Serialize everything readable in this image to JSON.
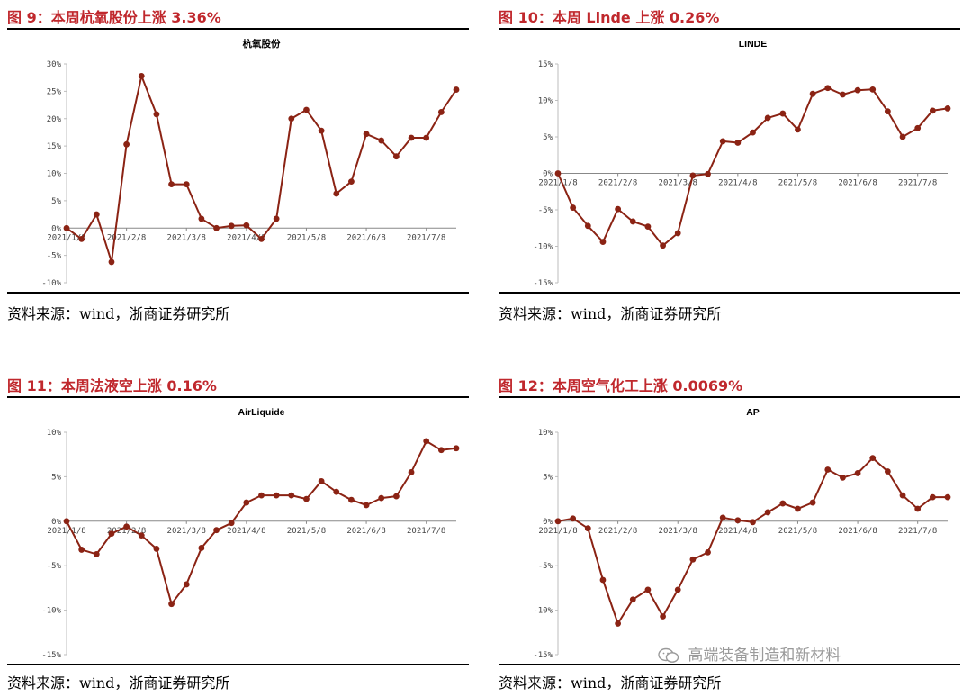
{
  "source_label": "资料来源：wind，浙商证券研究所",
  "watermark": "高端装备制造和新材料",
  "colors": {
    "line": "#8b2314",
    "title": "#c0282d"
  },
  "chart_data": [
    {
      "type": "line",
      "figure_label": "图 9：本周杭氧股份上涨 3.36%",
      "title": "杭氧股份",
      "xlabel": "",
      "ylabel": "",
      "ylim": [
        -0.1,
        0.3
      ],
      "yticks": [
        -0.1,
        -0.05,
        0,
        0.05,
        0.1,
        0.15,
        0.2,
        0.25,
        0.3
      ],
      "ytick_labels": [
        "-10%",
        "-5%",
        "0%",
        "5%",
        "10%",
        "15%",
        "20%",
        "25%",
        "30%"
      ],
      "xtick_labels": [
        "2021/1/8",
        "2021/2/8",
        "2021/3/8",
        "2021/4/8",
        "2021/5/8",
        "2021/6/8",
        "2021/7/8"
      ],
      "xtick_index": [
        0,
        4,
        8,
        12,
        16,
        20,
        24
      ],
      "values": [
        0.0,
        -0.02,
        0.025,
        -0.062,
        0.153,
        0.278,
        0.208,
        0.08,
        0.08,
        0.017,
        0.0,
        0.004,
        0.005,
        -0.02,
        0.017,
        0.2,
        0.216,
        0.178,
        0.063,
        0.085,
        0.172,
        0.16,
        0.131,
        0.165,
        0.165,
        0.212,
        0.253
      ],
      "grid": false
    },
    {
      "type": "line",
      "figure_label": "图 10：本周 Linde 上涨 0.26%",
      "title": "LINDE",
      "xlabel": "",
      "ylabel": "",
      "ylim": [
        -0.15,
        0.15
      ],
      "yticks": [
        -0.15,
        -0.1,
        -0.05,
        0,
        0.05,
        0.1,
        0.15
      ],
      "ytick_labels": [
        "-15%",
        "-10%",
        "-5%",
        "0%",
        "5%",
        "10%",
        "15%"
      ],
      "xtick_labels": [
        "2021/1/8",
        "2021/2/8",
        "2021/3/8",
        "2021/4/8",
        "2021/5/8",
        "2021/6/8",
        "2021/7/8"
      ],
      "xtick_index": [
        0,
        4,
        8,
        12,
        16,
        20,
        24
      ],
      "values": [
        0.0,
        -0.047,
        -0.072,
        -0.094,
        -0.049,
        -0.066,
        -0.073,
        -0.099,
        -0.082,
        -0.003,
        -0.001,
        0.044,
        0.042,
        0.056,
        0.076,
        0.082,
        0.06,
        0.109,
        0.117,
        0.108,
        0.114,
        0.115,
        0.085,
        0.05,
        0.062,
        0.086,
        0.089
      ],
      "grid": false
    },
    {
      "type": "line",
      "figure_label": "图 11：本周法液空上涨 0.16%",
      "title": "AirLiquide",
      "xlabel": "",
      "ylabel": "",
      "ylim": [
        -0.15,
        0.1
      ],
      "yticks": [
        -0.15,
        -0.1,
        -0.05,
        0,
        0.05,
        0.1
      ],
      "ytick_labels": [
        "-15%",
        "-10%",
        "-5%",
        "0%",
        "5%",
        "10%"
      ],
      "xtick_labels": [
        "2021/1/8",
        "2021/2/8",
        "2021/3/8",
        "2021/4/8",
        "2021/5/8",
        "2021/6/8",
        "2021/7/8"
      ],
      "xtick_index": [
        0,
        4,
        8,
        12,
        16,
        20,
        24
      ],
      "values": [
        0.0,
        -0.032,
        -0.037,
        -0.014,
        -0.006,
        -0.016,
        -0.031,
        -0.093,
        -0.071,
        -0.03,
        -0.01,
        -0.002,
        0.021,
        0.029,
        0.029,
        0.029,
        0.025,
        0.045,
        0.033,
        0.024,
        0.018,
        0.026,
        0.028,
        0.055,
        0.09,
        0.08,
        0.082
      ],
      "grid": false
    },
    {
      "type": "line",
      "figure_label": "图 12：本周空气化工上涨 0.0069%",
      "title": "AP",
      "xlabel": "",
      "ylabel": "",
      "ylim": [
        -0.15,
        0.1
      ],
      "yticks": [
        -0.15,
        -0.1,
        -0.05,
        0,
        0.05,
        0.1
      ],
      "ytick_labels": [
        "-15%",
        "-10%",
        "-5%",
        "0%",
        "5%",
        "10%"
      ],
      "xtick_labels": [
        "2021/1/8",
        "2021/2/8",
        "2021/3/8",
        "2021/4/8",
        "2021/5/8",
        "2021/6/8",
        "2021/7/8"
      ],
      "xtick_index": [
        0,
        4,
        8,
        12,
        16,
        20,
        24
      ],
      "values": [
        0.0,
        0.003,
        -0.008,
        -0.066,
        -0.115,
        -0.088,
        -0.077,
        -0.107,
        -0.077,
        -0.043,
        -0.035,
        0.004,
        0.001,
        -0.001,
        0.01,
        0.02,
        0.014,
        0.021,
        0.058,
        0.049,
        0.054,
        0.071,
        0.056,
        0.029,
        0.014,
        0.027,
        0.027
      ],
      "grid": false
    }
  ]
}
